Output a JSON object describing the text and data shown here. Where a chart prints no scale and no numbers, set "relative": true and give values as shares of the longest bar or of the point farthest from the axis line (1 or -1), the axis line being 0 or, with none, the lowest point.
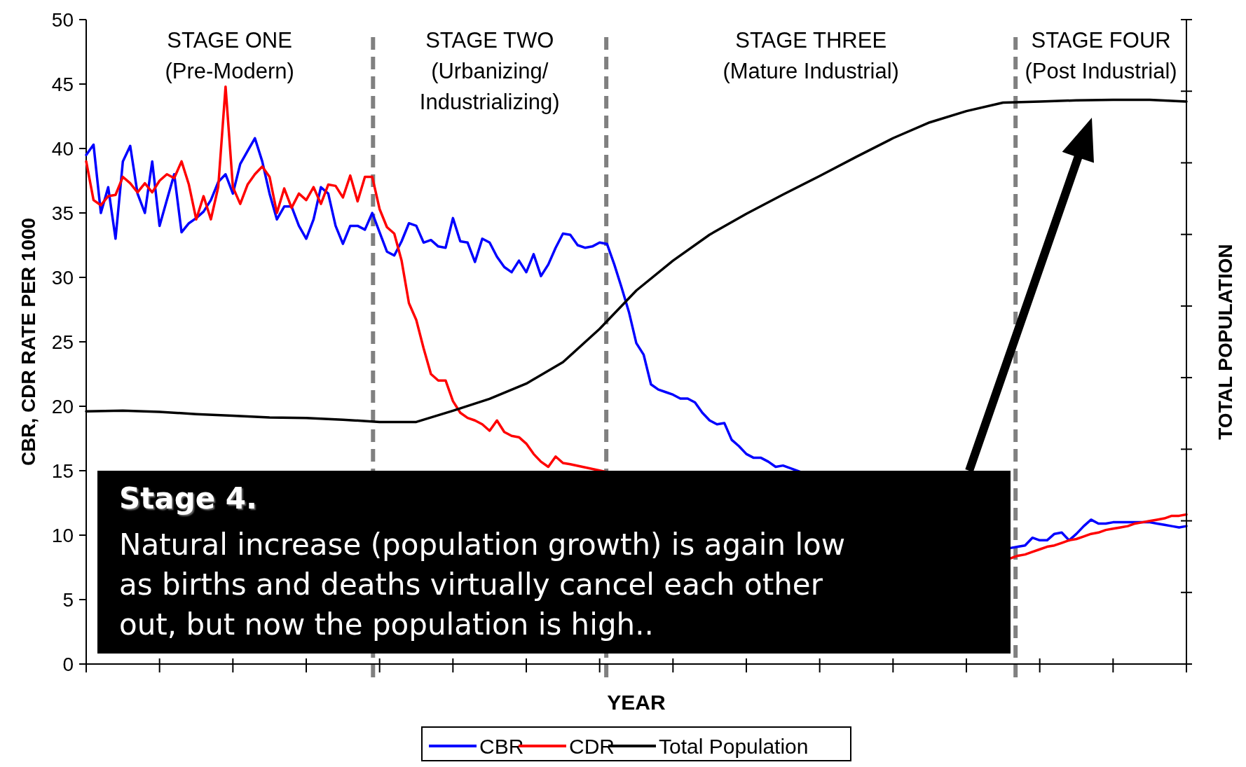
{
  "chart_data": [
    {
      "type": "line",
      "xlabel": "YEAR",
      "ylabel": "CBR, CDR RATE PER 1000",
      "categories": [
        null,
        null,
        null,
        null,
        null,
        null,
        null,
        null,
        null,
        null,
        null,
        null,
        null,
        null,
        null,
        null,
        null,
        null,
        null,
        null,
        null,
        null,
        null,
        null,
        null,
        null,
        null,
        null,
        null,
        null,
        null,
        null,
        null,
        null,
        null,
        null,
        null,
        null,
        null,
        null,
        null,
        null,
        null,
        null,
        null,
        null,
        null,
        null,
        null,
        null,
        null,
        null,
        null,
        null,
        null,
        null,
        null,
        null,
        null,
        null,
        null,
        null,
        null,
        null,
        null,
        null,
        null,
        null,
        null,
        null,
        null,
        null,
        null,
        null,
        null,
        null,
        null,
        null,
        null,
        null,
        null,
        null,
        null,
        null,
        null,
        null,
        null,
        null,
        null,
        null,
        null,
        null,
        null,
        null,
        null,
        null,
        null,
        null,
        null,
        null,
        null,
        null,
        null,
        null,
        null,
        null,
        null,
        null,
        null,
        null,
        null,
        null,
        null,
        null,
        null,
        null,
        null,
        null,
        null,
        null,
        null,
        null,
        null,
        null,
        null,
        null,
        null,
        null,
        null,
        null,
        null,
        null,
        null,
        null,
        null,
        null,
        null,
        null,
        null,
        null,
        null,
        null,
        null,
        null,
        null,
        null,
        null,
        null,
        null,
        null,
        null
      ],
      "ylim": [
        0,
        50
      ],
      "yticks": [
        0,
        5,
        10,
        15,
        20,
        25,
        30,
        35,
        40,
        45,
        50
      ],
      "legend": "bottom",
      "series": [
        {
          "name": "CBR",
          "color": "#0000ff",
          "values": [
            39.5,
            40.3,
            35,
            37,
            33,
            39,
            40.2,
            36.5,
            35,
            39,
            34,
            36,
            38,
            33.5,
            34.2,
            34.6,
            35.1,
            36,
            37.4,
            38,
            36.5,
            38.8,
            39.8,
            40.8,
            39,
            36.5,
            34.5,
            35.5,
            35.5,
            34,
            33,
            34.5,
            37,
            36.5,
            34,
            32.6,
            34,
            34,
            33.7,
            35,
            33.5,
            32,
            31.7,
            32.8,
            34.2,
            34,
            32.7,
            32.9,
            32.4,
            32.3,
            34.6,
            32.8,
            32.7,
            31.2,
            33,
            32.7,
            31.6,
            30.8,
            30.4,
            31.3,
            30.4,
            31.8,
            30.1,
            31,
            32.3,
            33.4,
            33.3,
            32.5,
            32.3,
            32.4,
            32.7,
            32.6,
            31,
            29.2,
            27.3,
            24.9,
            24,
            21.7,
            21.3,
            21.1,
            20.9,
            20.6,
            20.6,
            20.3,
            19.5,
            18.9,
            18.6,
            18.7,
            17.4,
            16.9,
            16.3,
            16,
            16,
            15.7,
            15.3,
            15.4,
            null,
            null,
            null,
            null,
            null,
            null,
            null,
            null,
            null,
            null,
            null,
            null,
            null,
            null,
            null,
            null,
            null,
            null,
            null,
            null,
            null,
            null,
            null,
            null,
            null,
            null,
            null,
            null,
            null,
            null,
            9,
            9.1,
            9.2,
            9.8,
            9.6,
            9.6,
            10.1,
            10.2,
            9.6,
            10.1,
            10.7,
            11.2,
            10.9,
            10.9,
            11,
            11,
            11,
            11,
            11,
            11,
            10.9,
            10.8,
            10.7,
            10.6,
            10.7
          ]
        },
        {
          "name": "CDR",
          "color": "#ff0000",
          "values": [
            39,
            36,
            35.6,
            36.3,
            36.4,
            37.8,
            37.3,
            36.6,
            37.3,
            36.6,
            37.5,
            38,
            37.7,
            39,
            37.2,
            34.5,
            36.3,
            34.5,
            37,
            44.8,
            37,
            35.7,
            37.2,
            38,
            38.6,
            37.8,
            35,
            36.9,
            35.4,
            36.5,
            36,
            37,
            35.7,
            37.2,
            37.1,
            36.2,
            37.9,
            35.9,
            37.8,
            37.8,
            35.3,
            33.9,
            33.4,
            31.3,
            28,
            26.7,
            24.5,
            22.5,
            22,
            22,
            20.4,
            19.5,
            19.1,
            18.9,
            18.6,
            18.1,
            18.9,
            18,
            17.7,
            17.6,
            17.1,
            16.3,
            15.7,
            15.3,
            16.1,
            15.6,
            15.5,
            null,
            null,
            null,
            null,
            null,
            null,
            null,
            null,
            null,
            null,
            null,
            null,
            null,
            null,
            null,
            null,
            null,
            null,
            null,
            null,
            null,
            null,
            null,
            null,
            null,
            null,
            null,
            null,
            null,
            null,
            null,
            null,
            null,
            null,
            null,
            null,
            null,
            null,
            null,
            null,
            null,
            null,
            null,
            null,
            null,
            null,
            null,
            null,
            null,
            null,
            null,
            null,
            null,
            null,
            null,
            null,
            null,
            null,
            null,
            8.2,
            8.4,
            8.5,
            8.7,
            8.9,
            9.1,
            9.2,
            9.4,
            9.6,
            9.7,
            9.9,
            10.1,
            10.2,
            10.4,
            10.5,
            10.6,
            10.7,
            10.9,
            11,
            11.1,
            11.2,
            11.3,
            11.5,
            11.5,
            11.6
          ]
        }
      ],
      "annotations": [
        "STAGE ONE\n(Pre-Modern)",
        "STAGE TWO\n(Urbanizing/\nIndustrializing)",
        "STAGE THREE\n(Mature Industrial)",
        "STAGE FOUR\n(Post Industrial)",
        "Stage 4.",
        "Natural increase (population growth) is again low as births and deaths virtually cancel each other out, but now the population is high.."
      ]
    },
    {
      "type": "line",
      "ylabel": "TOTAL POPULATION",
      "relative": true,
      "legend": "bottom",
      "categories": [
        null,
        null,
        null,
        null,
        null,
        null,
        null,
        null,
        null,
        null,
        null,
        null,
        null,
        null,
        null,
        null,
        null,
        null,
        null,
        null,
        null,
        null,
        null,
        null,
        null,
        null,
        null,
        null,
        null,
        null,
        null
      ],
      "series": [
        {
          "name": "Total Population",
          "color": "#000000",
          "values": [
            0.448,
            0.449,
            0.447,
            0.443,
            0.44,
            0.437,
            0.436,
            0.433,
            0.429,
            0.429,
            0.449,
            0.47,
            0.497,
            0.535,
            0.594,
            0.662,
            0.715,
            0.761,
            0.798,
            0.832,
            0.865,
            0.899,
            0.932,
            0.96,
            0.98,
            0.995,
            0.997,
            0.999,
            1,
            1,
            0.997
          ]
        }
      ]
    }
  ]
}
